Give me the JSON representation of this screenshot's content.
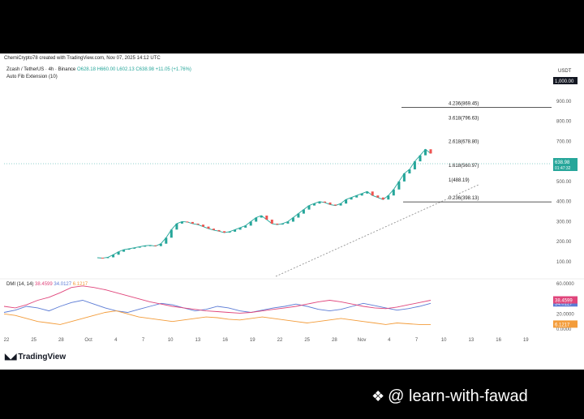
{
  "attribution": "ChemiCrypto78 created with TradingView.com, Nov 07, 2025 14:12 UTC",
  "legend": {
    "symbol": "Zcash / TetherUS · 4h · Binance",
    "ohlc": "O628.18 H660.00 L602.13 C638.98 +11.05 (+1.76%)",
    "indicator": "Auto Fib Extension (10)"
  },
  "unit": "USDT",
  "brand": "TradingView",
  "watermark": "@ learn-with-fawad",
  "chart_data": [
    {
      "type": "line",
      "title": "",
      "ylim": [
        0,
        1000
      ],
      "y_ticks": [
        "1,000.00",
        "900.00",
        "800.00",
        "700.00",
        "600.00",
        "500.00",
        "400.00",
        "300.00",
        "200.00",
        "100.00"
      ],
      "x_ticks": [
        "22",
        "25",
        "28",
        "Oct",
        "4",
        "7",
        "10",
        "13",
        "16",
        "19",
        "22",
        "25",
        "28",
        "Nov",
        "4",
        "7",
        "10",
        "13",
        "16",
        "19"
      ],
      "series": [
        {
          "values": [
            120,
            118,
            122,
            135,
            150,
            160,
            165,
            170,
            175,
            180,
            182,
            178,
            190,
            220,
            260,
            290,
            300,
            298,
            290,
            285,
            275,
            265,
            258,
            252,
            245,
            250,
            260,
            270,
            280,
            300,
            320,
            330,
            310,
            290,
            285,
            290,
            300,
            320,
            340,
            360,
            380,
            390,
            400,
            395,
            385,
            380,
            390,
            410,
            420,
            430,
            440,
            450,
            430,
            420,
            410,
            430,
            460,
            500,
            540,
            560,
            600,
            630,
            660,
            639
          ]
        }
      ],
      "current_price": "638.98",
      "price_countdown": "01:47:32",
      "top_label": "1,000.00",
      "fib_levels": [
        {
          "label": "4.236(869.45)",
          "value": 869.45
        },
        {
          "label": "3.618(796.63)",
          "value": 796.63
        },
        {
          "label": "2.618(678.80)",
          "value": 678.8
        },
        {
          "label": "1.618(560.97)",
          "value": 560.97
        },
        {
          "label": "1(488.19)",
          "value": 488.19
        },
        {
          "label": "0.236(398.13)",
          "value": 398.13
        }
      ]
    },
    {
      "type": "line",
      "title": "DMI (14, 14)",
      "ylim": [
        0,
        60
      ],
      "y_ticks": [
        "60.0000",
        "40.0000",
        "20.0000",
        "0.0000"
      ],
      "series": [
        {
          "name": "+DI",
          "color": "#5b7bd5",
          "last": "34.0127",
          "values": [
            22,
            25,
            30,
            28,
            24,
            30,
            35,
            38,
            33,
            28,
            24,
            22,
            26,
            30,
            34,
            32,
            28,
            24,
            26,
            30,
            28,
            24,
            22,
            25,
            28,
            30,
            33,
            30,
            26,
            24,
            26,
            30,
            34,
            31,
            28,
            25,
            27,
            30,
            34
          ]
        },
        {
          "name": "ADX",
          "color": "#e0457b",
          "last": "38.4599",
          "values": [
            30,
            28,
            32,
            38,
            42,
            48,
            55,
            57,
            55,
            52,
            48,
            44,
            40,
            36,
            33,
            30,
            28,
            26,
            24,
            23,
            22,
            21,
            22,
            24,
            26,
            28,
            30,
            33,
            36,
            38,
            36,
            33,
            30,
            28,
            27,
            29,
            32,
            35,
            38
          ]
        },
        {
          "name": "-DI",
          "color": "#f39c3a",
          "last": "6.1217",
          "values": [
            20,
            18,
            14,
            10,
            8,
            6,
            10,
            14,
            18,
            22,
            24,
            20,
            16,
            14,
            12,
            10,
            12,
            14,
            16,
            15,
            13,
            12,
            14,
            16,
            14,
            12,
            10,
            8,
            10,
            12,
            14,
            12,
            10,
            8,
            6,
            8,
            7,
            6,
            6
          ]
        }
      ]
    }
  ]
}
